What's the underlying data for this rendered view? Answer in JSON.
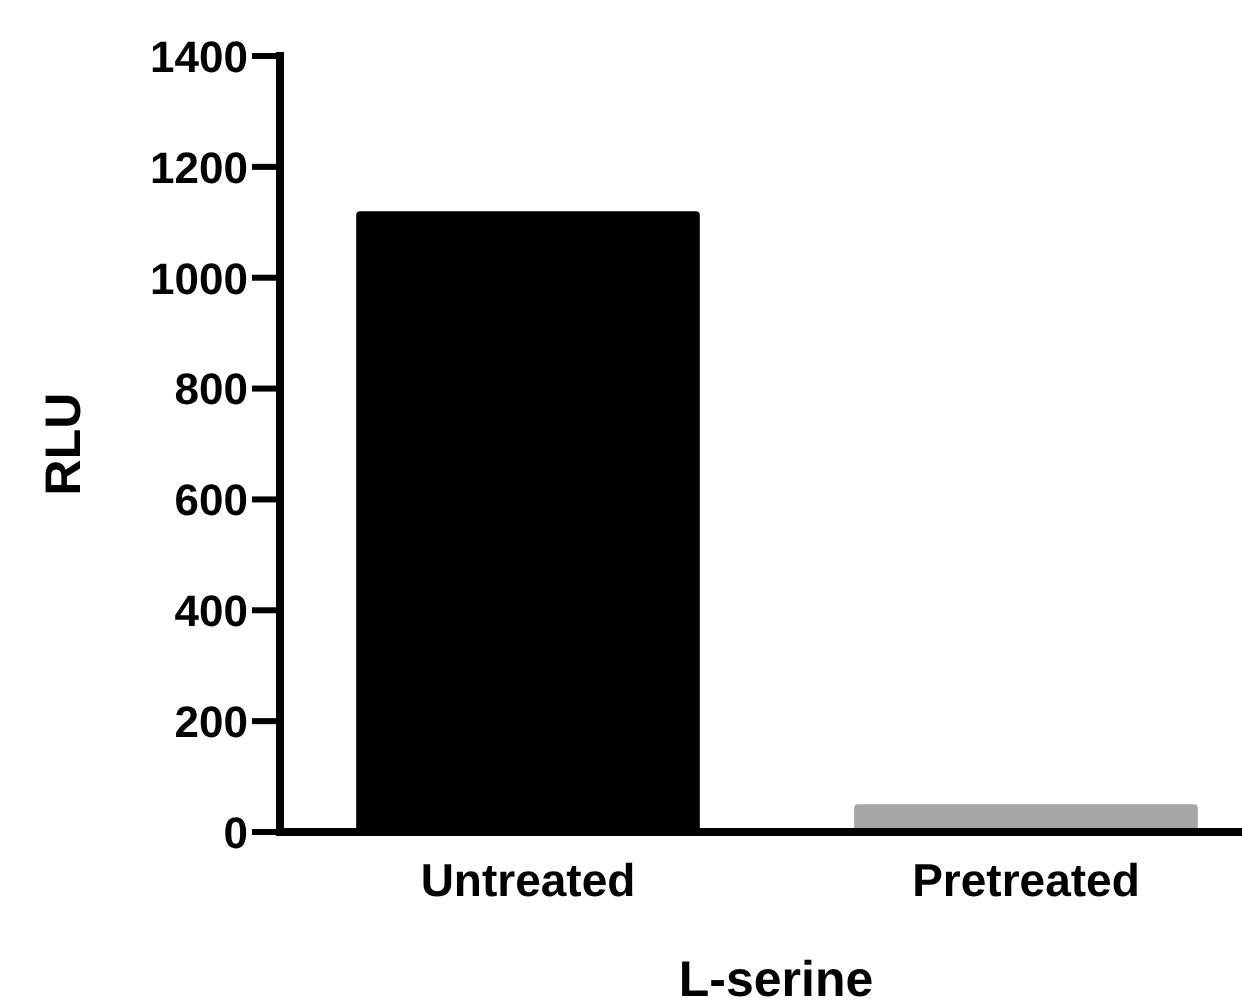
{
  "chart_data": {
    "type": "bar",
    "xlabel": "L-serine",
    "ylabel": "RLU",
    "categories": [
      "Untreated",
      "Pretreated"
    ],
    "values": [
      1120,
      50
    ],
    "colors": [
      "#000000",
      "#a6a6a6"
    ],
    "ylim": [
      0,
      1400
    ],
    "yticks": [
      0,
      200,
      400,
      600,
      800,
      1000,
      1200,
      1400
    ],
    "grid": false
  }
}
